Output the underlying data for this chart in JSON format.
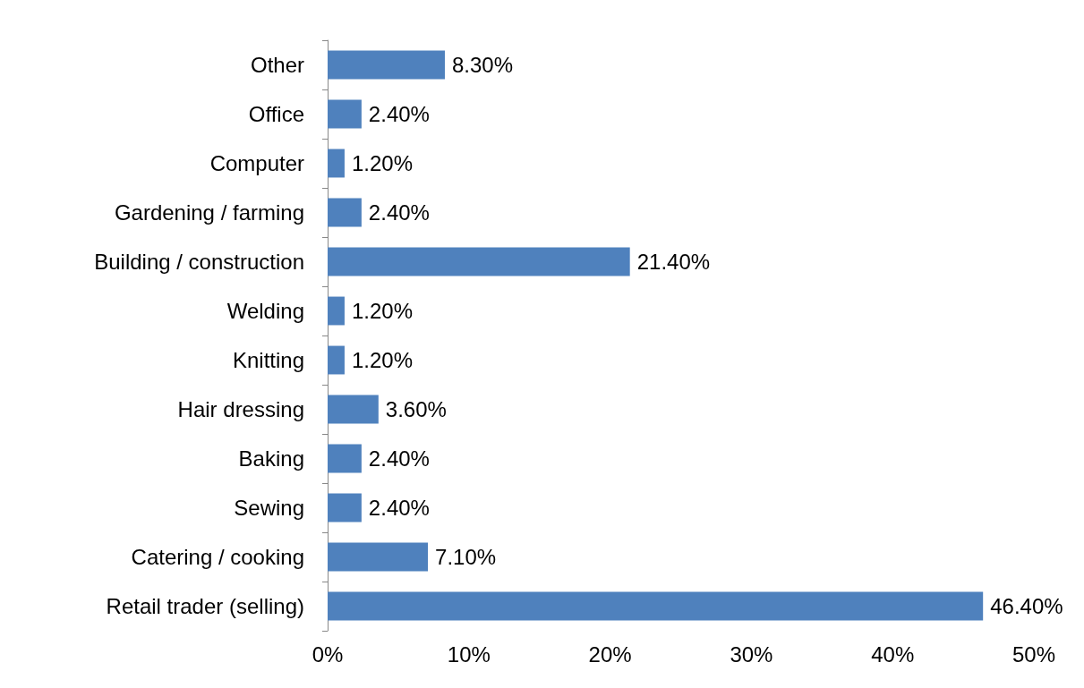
{
  "chart_data": {
    "type": "bar",
    "orientation": "horizontal",
    "categories": [
      "Other",
      "Office",
      "Computer",
      "Gardening / farming",
      "Building / construction",
      "Welding",
      "Knitting",
      "Hair dressing",
      "Baking",
      "Sewing",
      "Catering / cooking",
      "Retail trader (selling)"
    ],
    "values": [
      8.3,
      2.4,
      1.2,
      2.4,
      21.4,
      1.2,
      1.2,
      3.6,
      2.4,
      2.4,
      7.1,
      46.4
    ],
    "value_labels": [
      "8.30%",
      "2.40%",
      "1.20%",
      "2.40%",
      "21.40%",
      "1.20%",
      "1.20%",
      "3.60%",
      "2.40%",
      "2.40%",
      "7.10%",
      "46.40%"
    ],
    "color": "#4f81bd",
    "xlim": [
      0,
      50
    ],
    "xticks": [
      {
        "value": 0,
        "label": "0%"
      },
      {
        "value": 10,
        "label": "10%"
      },
      {
        "value": 20,
        "label": "20%"
      },
      {
        "value": 30,
        "label": "30%"
      },
      {
        "value": 40,
        "label": "40%"
      },
      {
        "value": 50,
        "label": "50%"
      }
    ],
    "grid": false
  }
}
